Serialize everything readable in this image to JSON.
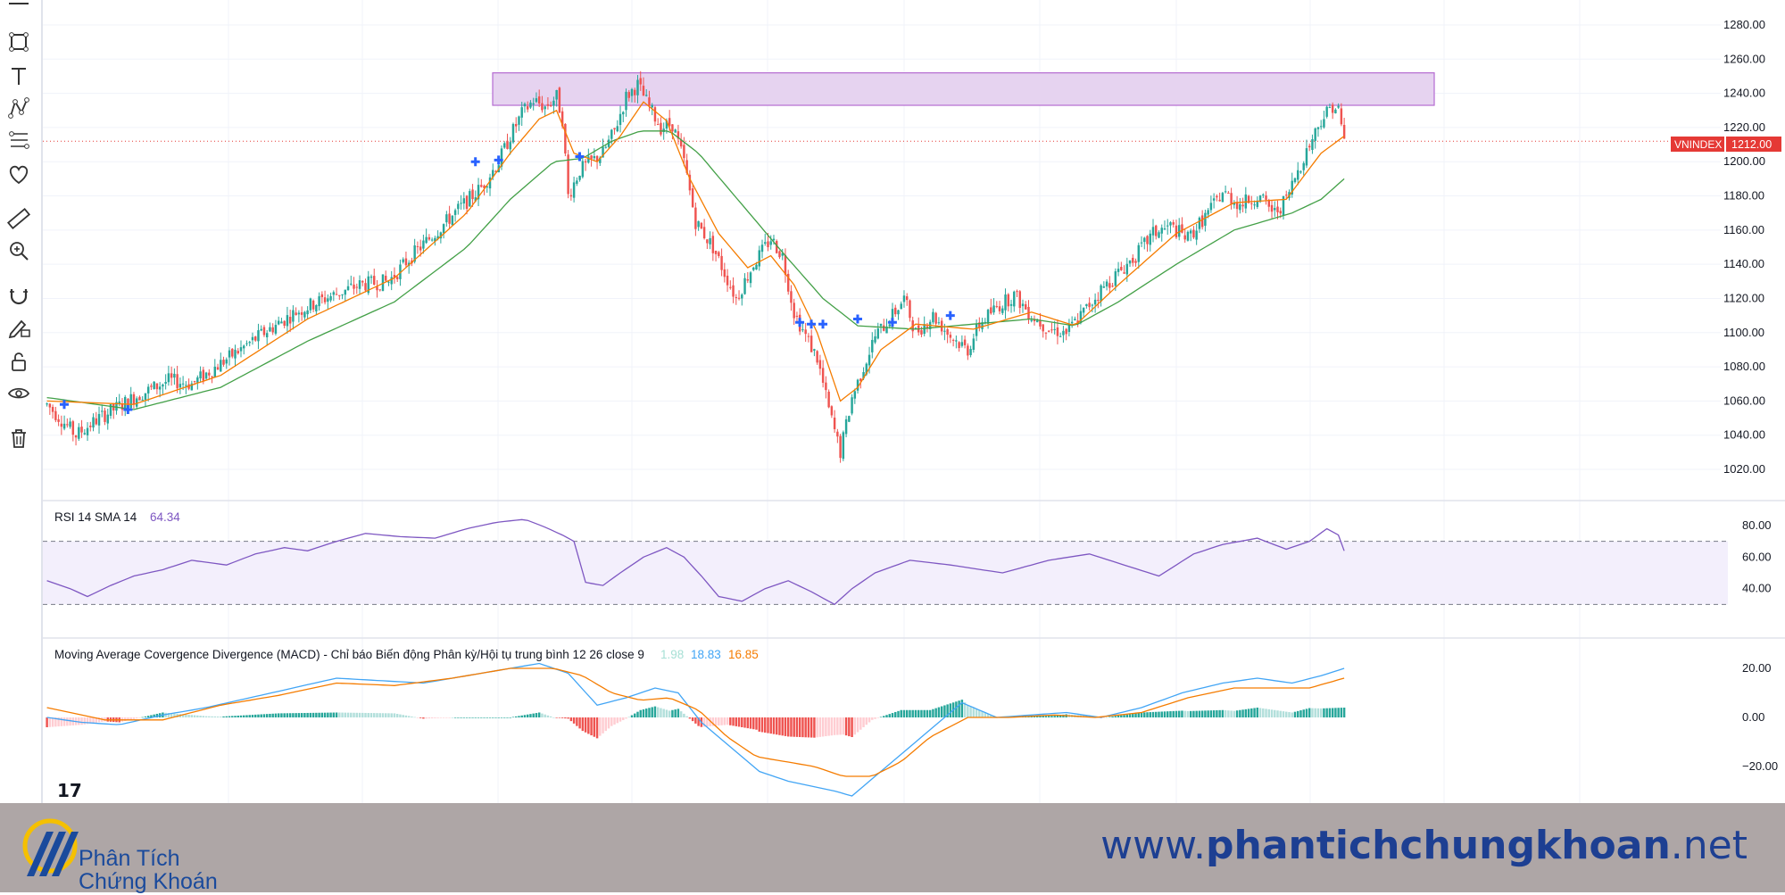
{
  "toolbar": {
    "tools": [
      {
        "name": "trendline-tool",
        "icon": "line-icon"
      },
      {
        "name": "rectangle-tool",
        "icon": "rectangle-icon"
      },
      {
        "name": "text-tool",
        "icon": "text-icon"
      },
      {
        "name": "pattern-tool",
        "icon": "pattern-icon"
      },
      {
        "name": "prediction-tool",
        "icon": "forecast-icon"
      },
      {
        "name": "favorites-tool",
        "icon": "heart-icon"
      },
      {
        "name": "measure-tool",
        "icon": "ruler-icon"
      },
      {
        "name": "zoom-tool",
        "icon": "zoom-in-icon"
      },
      {
        "name": "magnet-tool",
        "icon": "magnet-icon"
      },
      {
        "name": "stay-drawing-tool",
        "icon": "pencil-lock-icon"
      },
      {
        "name": "lock-drawings-tool",
        "icon": "lock-icon"
      },
      {
        "name": "hide-drawings-tool",
        "icon": "eye-icon"
      },
      {
        "name": "remove-drawings-tool",
        "icon": "trash-icon"
      }
    ]
  },
  "chart_data": {
    "type": "candlestick",
    "symbol": "VNINDEX",
    "last_price": "1212.00",
    "price_axis": {
      "ticks": [
        "1280.00",
        "1260.00",
        "1240.00",
        "1220.00",
        "1200.00",
        "1180.00",
        "1160.00",
        "1140.00",
        "1120.00",
        "1100.00",
        "1080.00",
        "1060.00",
        "1040.00",
        "1020.00"
      ],
      "range": [
        1010,
        1290
      ]
    },
    "resistance_zone": {
      "low": 1233,
      "high": 1252,
      "color": "#e6d3f0"
    },
    "price_path": [
      [
        0,
        1058
      ],
      [
        10,
        1040
      ],
      [
        18,
        1050
      ],
      [
        30,
        1062
      ],
      [
        42,
        1072
      ],
      [
        50,
        1070
      ],
      [
        60,
        1082
      ],
      [
        75,
        1100
      ],
      [
        86,
        1112
      ],
      [
        96,
        1120
      ],
      [
        108,
        1128
      ],
      [
        118,
        1130
      ],
      [
        126,
        1145
      ],
      [
        135,
        1160
      ],
      [
        142,
        1172
      ],
      [
        150,
        1185
      ],
      [
        156,
        1200
      ],
      [
        160,
        1215
      ],
      [
        164,
        1228
      ],
      [
        168,
        1236
      ],
      [
        172,
        1232
      ],
      [
        176,
        1238
      ],
      [
        178,
        1225
      ],
      [
        180,
        1180
      ],
      [
        184,
        1195
      ],
      [
        188,
        1200
      ],
      [
        192,
        1205
      ],
      [
        196,
        1218
      ],
      [
        200,
        1238
      ],
      [
        204,
        1245
      ],
      [
        208,
        1232
      ],
      [
        212,
        1220
      ],
      [
        216,
        1222
      ],
      [
        220,
        1200
      ],
      [
        224,
        1165
      ],
      [
        230,
        1150
      ],
      [
        238,
        1120
      ],
      [
        244,
        1140
      ],
      [
        250,
        1155
      ],
      [
        254,
        1145
      ],
      [
        258,
        1112
      ],
      [
        262,
        1098
      ],
      [
        266,
        1085
      ],
      [
        270,
        1055
      ],
      [
        274,
        1030
      ],
      [
        278,
        1062
      ],
      [
        282,
        1080
      ],
      [
        286,
        1098
      ],
      [
        292,
        1110
      ],
      [
        296,
        1120
      ],
      [
        300,
        1100
      ],
      [
        306,
        1110
      ],
      [
        312,
        1098
      ],
      [
        318,
        1090
      ],
      [
        322,
        1105
      ],
      [
        328,
        1115
      ],
      [
        334,
        1122
      ],
      [
        340,
        1110
      ],
      [
        346,
        1102
      ],
      [
        352,
        1100
      ],
      [
        358,
        1112
      ],
      [
        364,
        1125
      ],
      [
        370,
        1135
      ],
      [
        376,
        1145
      ],
      [
        382,
        1158
      ],
      [
        388,
        1162
      ],
      [
        394,
        1155
      ],
      [
        400,
        1168
      ],
      [
        406,
        1182
      ],
      [
        412,
        1175
      ],
      [
        418,
        1180
      ],
      [
        424,
        1170
      ],
      [
        428,
        1178
      ],
      [
        432,
        1195
      ],
      [
        436,
        1210
      ],
      [
        440,
        1225
      ],
      [
        444,
        1233
      ],
      [
        446,
        1230
      ],
      [
        448,
        1212
      ]
    ],
    "ema_fast_path": [
      [
        0,
        1060
      ],
      [
        30,
        1058
      ],
      [
        60,
        1075
      ],
      [
        90,
        1108
      ],
      [
        120,
        1132
      ],
      [
        145,
        1170
      ],
      [
        160,
        1205
      ],
      [
        170,
        1225
      ],
      [
        176,
        1230
      ],
      [
        182,
        1205
      ],
      [
        190,
        1200
      ],
      [
        198,
        1215
      ],
      [
        206,
        1235
      ],
      [
        214,
        1224
      ],
      [
        222,
        1190
      ],
      [
        232,
        1158
      ],
      [
        242,
        1138
      ],
      [
        250,
        1145
      ],
      [
        258,
        1128
      ],
      [
        266,
        1100
      ],
      [
        274,
        1060
      ],
      [
        280,
        1068
      ],
      [
        288,
        1090
      ],
      [
        300,
        1105
      ],
      [
        320,
        1102
      ],
      [
        340,
        1112
      ],
      [
        355,
        1104
      ],
      [
        370,
        1128
      ],
      [
        390,
        1158
      ],
      [
        410,
        1176
      ],
      [
        428,
        1178
      ],
      [
        440,
        1205
      ],
      [
        448,
        1215
      ]
    ],
    "ema_slow_path": [
      [
        0,
        1062
      ],
      [
        30,
        1055
      ],
      [
        60,
        1068
      ],
      [
        90,
        1095
      ],
      [
        120,
        1118
      ],
      [
        145,
        1150
      ],
      [
        160,
        1178
      ],
      [
        175,
        1200
      ],
      [
        185,
        1202
      ],
      [
        195,
        1212
      ],
      [
        205,
        1218
      ],
      [
        215,
        1218
      ],
      [
        225,
        1205
      ],
      [
        240,
        1175
      ],
      [
        255,
        1145
      ],
      [
        268,
        1120
      ],
      [
        280,
        1104
      ],
      [
        300,
        1102
      ],
      [
        320,
        1105
      ],
      [
        340,
        1108
      ],
      [
        355,
        1104
      ],
      [
        370,
        1118
      ],
      [
        390,
        1140
      ],
      [
        410,
        1160
      ],
      [
        430,
        1170
      ],
      [
        440,
        1178
      ],
      [
        448,
        1190
      ]
    ],
    "rsi": {
      "title": "RSI 14 SMA 14",
      "value": "64.34",
      "ticks": [
        "80.00",
        "60.00",
        "40.00"
      ],
      "upper": 70,
      "lower": 30,
      "path": [
        [
          0,
          45
        ],
        [
          8,
          40
        ],
        [
          14,
          35
        ],
        [
          22,
          42
        ],
        [
          30,
          48
        ],
        [
          40,
          52
        ],
        [
          50,
          58
        ],
        [
          62,
          55
        ],
        [
          72,
          62
        ],
        [
          82,
          66
        ],
        [
          90,
          64
        ],
        [
          100,
          70
        ],
        [
          110,
          75
        ],
        [
          122,
          73
        ],
        [
          134,
          72
        ],
        [
          145,
          78
        ],
        [
          155,
          82
        ],
        [
          165,
          84
        ],
        [
          172,
          79
        ],
        [
          178,
          74
        ],
        [
          182,
          70
        ],
        [
          186,
          44
        ],
        [
          192,
          42
        ],
        [
          198,
          50
        ],
        [
          206,
          60
        ],
        [
          214,
          66
        ],
        [
          220,
          60
        ],
        [
          226,
          48
        ],
        [
          232,
          35
        ],
        [
          240,
          32
        ],
        [
          248,
          40
        ],
        [
          256,
          45
        ],
        [
          264,
          38
        ],
        [
          272,
          30
        ],
        [
          278,
          40
        ],
        [
          286,
          50
        ],
        [
          298,
          58
        ],
        [
          312,
          55
        ],
        [
          330,
          50
        ],
        [
          346,
          58
        ],
        [
          360,
          62
        ],
        [
          372,
          55
        ],
        [
          384,
          48
        ],
        [
          396,
          62
        ],
        [
          406,
          68
        ],
        [
          418,
          72
        ],
        [
          428,
          65
        ],
        [
          436,
          70
        ],
        [
          442,
          78
        ],
        [
          446,
          74
        ],
        [
          448,
          64
        ]
      ]
    },
    "macd": {
      "title": "Moving Average Covergence Divergence (MACD) - Chỉ báo Biến động Phân kỳ/Hội tụ trung bình 12 26 close 9",
      "hist_value": "1.98",
      "macd_value": "18.83",
      "signal_value": "16.85",
      "ticks": [
        "20.00",
        "0.00",
        "−20.00"
      ],
      "range": [
        -32,
        28
      ],
      "macd_path": [
        [
          0,
          0
        ],
        [
          12,
          -2
        ],
        [
          25,
          -3
        ],
        [
          40,
          1
        ],
        [
          55,
          4
        ],
        [
          70,
          8
        ],
        [
          85,
          12
        ],
        [
          100,
          16
        ],
        [
          115,
          15
        ],
        [
          130,
          14
        ],
        [
          145,
          17
        ],
        [
          160,
          20
        ],
        [
          170,
          22
        ],
        [
          180,
          18
        ],
        [
          190,
          5
        ],
        [
          200,
          8
        ],
        [
          210,
          12
        ],
        [
          218,
          10
        ],
        [
          226,
          -2
        ],
        [
          236,
          -12
        ],
        [
          246,
          -22
        ],
        [
          256,
          -26
        ],
        [
          264,
          -28
        ],
        [
          272,
          -30
        ],
        [
          278,
          -32
        ],
        [
          286,
          -24
        ],
        [
          296,
          -14
        ],
        [
          306,
          -4
        ],
        [
          316,
          6
        ],
        [
          328,
          0
        ],
        [
          340,
          1
        ],
        [
          352,
          2
        ],
        [
          364,
          0
        ],
        [
          378,
          4
        ],
        [
          392,
          10
        ],
        [
          406,
          14
        ],
        [
          418,
          16
        ],
        [
          430,
          14
        ],
        [
          440,
          17
        ],
        [
          448,
          20
        ]
      ],
      "signal_path": [
        [
          0,
          4
        ],
        [
          20,
          -1
        ],
        [
          40,
          -1
        ],
        [
          60,
          5
        ],
        [
          80,
          9
        ],
        [
          100,
          14
        ],
        [
          120,
          13
        ],
        [
          140,
          16
        ],
        [
          160,
          20
        ],
        [
          175,
          20
        ],
        [
          185,
          17
        ],
        [
          195,
          10
        ],
        [
          205,
          7
        ],
        [
          215,
          8
        ],
        [
          225,
          3
        ],
        [
          235,
          -8
        ],
        [
          245,
          -16
        ],
        [
          255,
          -18
        ],
        [
          265,
          -20
        ],
        [
          275,
          -24
        ],
        [
          285,
          -24
        ],
        [
          295,
          -18
        ],
        [
          305,
          -8
        ],
        [
          318,
          0
        ],
        [
          332,
          0
        ],
        [
          348,
          1
        ],
        [
          362,
          0
        ],
        [
          378,
          2
        ],
        [
          394,
          8
        ],
        [
          410,
          12
        ],
        [
          424,
          12
        ],
        [
          436,
          12
        ],
        [
          448,
          16
        ]
      ]
    },
    "n_bars": 450
  },
  "footer": {
    "logo_line1": "Phân Tích",
    "logo_line2": "Chứng Khoán",
    "site_prefix": "www.",
    "site_bold": "phantichchungkhoan",
    "site_suffix": ".net"
  }
}
